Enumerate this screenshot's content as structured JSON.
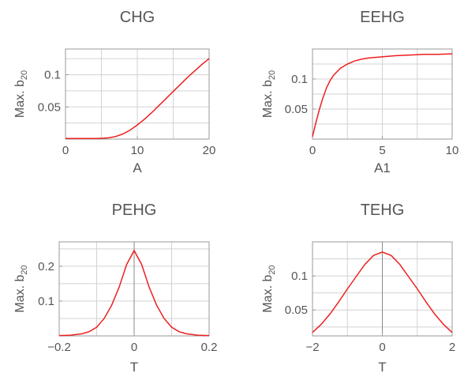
{
  "colors": {
    "curve": "#ee1f1f",
    "grid": "#d3d3d3",
    "frame": "#9a9a9a",
    "text": "#555555"
  },
  "chart_data": [
    {
      "type": "line",
      "title": "CHG",
      "xlabel": "A",
      "ylabel": "Max. b",
      "ylabel_sub": "20",
      "xlim": [
        0,
        20
      ],
      "ylim": [
        0,
        0.14
      ],
      "xticks": [
        0,
        10,
        20
      ],
      "xtick_labels": [
        "0",
        "10",
        "20"
      ],
      "yticks": [
        0.05,
        0.1
      ],
      "ytick_labels": [
        "0.05",
        "0.1"
      ],
      "grid": true,
      "series": [
        {
          "x": [
            0,
            2,
            4,
            5,
            6,
            7,
            8,
            9,
            10,
            11,
            12,
            13,
            14,
            15,
            16,
            17,
            18,
            19,
            20
          ],
          "y": [
            0.001,
            0.001,
            0.001,
            0.0012,
            0.002,
            0.004,
            0.008,
            0.014,
            0.022,
            0.031,
            0.041,
            0.052,
            0.063,
            0.074,
            0.085,
            0.096,
            0.106,
            0.116,
            0.125
          ]
        }
      ]
    },
    {
      "type": "line",
      "title": "EEHG",
      "xlabel": "A1",
      "ylabel": "Max. b",
      "ylabel_sub": "20",
      "xlim": [
        0,
        10
      ],
      "ylim": [
        0,
        0.15
      ],
      "xticks": [
        0,
        5,
        10
      ],
      "xtick_labels": [
        "0",
        "5",
        "10"
      ],
      "yticks": [
        0.05,
        0.1
      ],
      "ytick_labels": [
        "0.05",
        "0.1"
      ],
      "grid": true,
      "series": [
        {
          "x": [
            0,
            0.25,
            0.5,
            0.75,
            1,
            1.25,
            1.5,
            2,
            2.5,
            3,
            3.5,
            4,
            5,
            6,
            7,
            8,
            9,
            10
          ],
          "y": [
            0.004,
            0.028,
            0.05,
            0.069,
            0.085,
            0.097,
            0.106,
            0.118,
            0.125,
            0.13,
            0.133,
            0.135,
            0.137,
            0.139,
            0.14,
            0.141,
            0.141,
            0.142
          ]
        }
      ]
    },
    {
      "type": "line",
      "title": "PEHG",
      "xlabel": "T",
      "ylabel": "Max. b",
      "ylabel_sub": "20",
      "xlim": [
        -0.2,
        0.2
      ],
      "ylim": [
        0,
        0.27
      ],
      "xticks": [
        -0.2,
        0,
        0.2
      ],
      "xtick_labels": [
        "−0.2",
        "0",
        "0.2"
      ],
      "yticks": [
        0.1,
        0.2
      ],
      "ytick_labels": [
        "0.1",
        "0.2"
      ],
      "grid": true,
      "series": [
        {
          "x": [
            -0.2,
            -0.17,
            -0.14,
            -0.12,
            -0.1,
            -0.08,
            -0.06,
            -0.04,
            -0.02,
            0,
            0.02,
            0.04,
            0.06,
            0.08,
            0.1,
            0.12,
            0.14,
            0.17,
            0.2
          ],
          "y": [
            0.001,
            0.002,
            0.006,
            0.012,
            0.025,
            0.05,
            0.088,
            0.14,
            0.205,
            0.245,
            0.205,
            0.14,
            0.088,
            0.05,
            0.025,
            0.012,
            0.006,
            0.002,
            0.001
          ]
        }
      ]
    },
    {
      "type": "line",
      "title": "TEHG",
      "xlabel": "T",
      "ylabel": "Max. b",
      "ylabel_sub": "20",
      "xlim": [
        -2,
        2
      ],
      "ylim": [
        0.012,
        0.15
      ],
      "xticks": [
        -2,
        0,
        2
      ],
      "xtick_labels": [
        "−2",
        "0",
        "2"
      ],
      "yticks": [
        0.05,
        0.1
      ],
      "ytick_labels": [
        "0.05",
        "0.1"
      ],
      "grid": true,
      "series": [
        {
          "x": [
            -2,
            -1.75,
            -1.5,
            -1.25,
            -1,
            -0.75,
            -0.5,
            -0.25,
            0,
            0.25,
            0.5,
            0.75,
            1,
            1.25,
            1.5,
            1.75,
            2
          ],
          "y": [
            0.017,
            0.029,
            0.044,
            0.062,
            0.081,
            0.099,
            0.117,
            0.13,
            0.135,
            0.13,
            0.117,
            0.099,
            0.081,
            0.062,
            0.044,
            0.029,
            0.017
          ]
        }
      ]
    }
  ]
}
